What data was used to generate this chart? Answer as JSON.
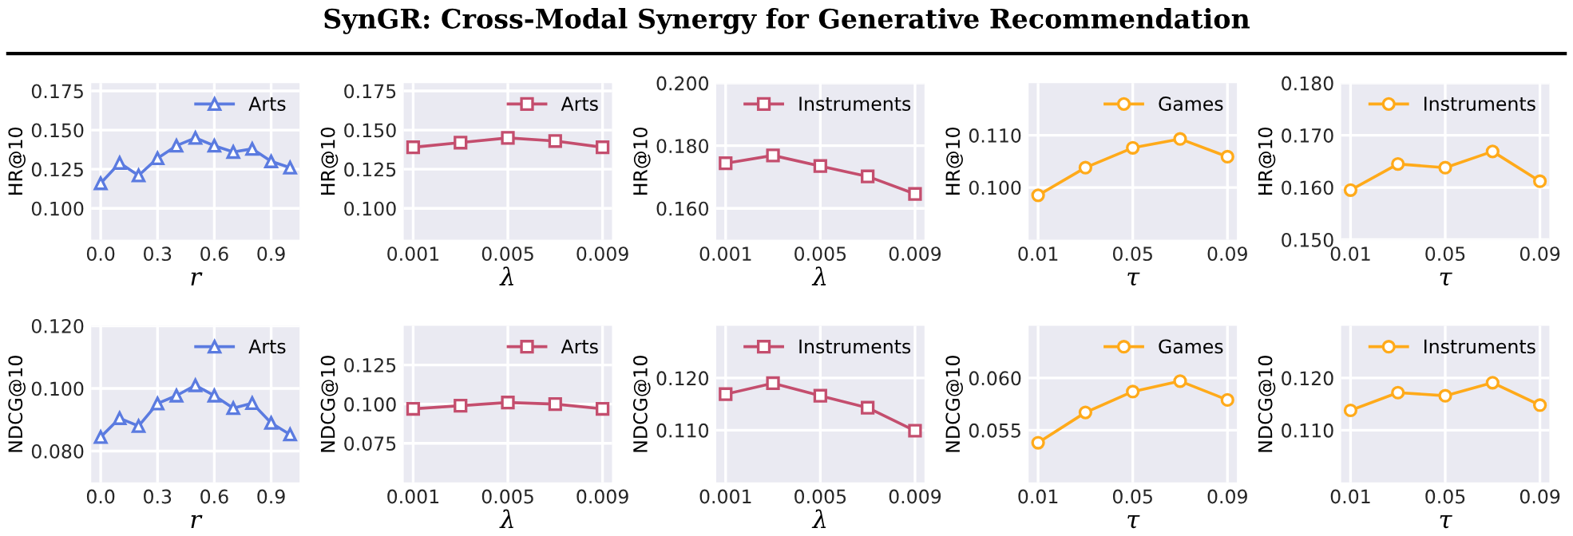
{
  "chart_data": [
    {
      "type": "line",
      "xlabel": "r",
      "ylabel": "HR@10",
      "x": [
        0.0,
        0.1,
        0.2,
        0.3,
        0.4,
        0.5,
        0.6,
        0.7,
        0.8,
        0.9,
        1.0
      ],
      "series": [
        {
          "name": "Arts",
          "color": "#5b7be0",
          "values": [
            0.116,
            0.129,
            0.121,
            0.132,
            0.14,
            0.145,
            0.14,
            0.136,
            0.138,
            0.13,
            0.126
          ]
        }
      ],
      "marker": "triangle",
      "xlim": [
        -0.05,
        1.05
      ],
      "xticks": [
        {
          "value": 0.0,
          "label": "0.0"
        },
        {
          "value": 0.3,
          "label": "0.3"
        },
        {
          "value": 0.6,
          "label": "0.6"
        },
        {
          "value": 0.9,
          "label": "0.9"
        }
      ],
      "ylim": [
        0.08,
        0.18
      ],
      "yticks": [
        {
          "value": 0.1,
          "label": "0.100"
        },
        {
          "value": 0.125,
          "label": "0.125"
        },
        {
          "value": 0.15,
          "label": "0.150"
        },
        {
          "value": 0.175,
          "label": "0.175"
        }
      ],
      "grid": true,
      "legend": "top right"
    },
    {
      "type": "line",
      "xlabel": "λ",
      "ylabel": "HR@10",
      "x": [
        0.001,
        0.003,
        0.005,
        0.007,
        0.009
      ],
      "series": [
        {
          "name": "Arts",
          "color": "#c44e6e",
          "values": [
            0.139,
            0.142,
            0.145,
            0.143,
            0.139
          ]
        }
      ],
      "marker": "square",
      "xlim": [
        0.0006,
        0.0094
      ],
      "xticks": [
        0.001,
        0.005,
        0.009
      ],
      "ylim": [
        0.08,
        0.18
      ],
      "yticks": [
        {
          "value": 0.1,
          "label": "0.100"
        },
        {
          "value": 0.125,
          "label": "0.125"
        },
        {
          "value": 0.15,
          "label": "0.150"
        },
        {
          "value": 0.175,
          "label": "0.175"
        }
      ],
      "grid": true,
      "legend": "top right"
    },
    {
      "type": "line",
      "title": "SynGR: Cross-Modal Synergy for Generative Recommendation",
      "xlabel": "λ",
      "ylabel": "HR@10",
      "x": [
        0.001,
        0.003,
        0.005,
        0.007,
        0.009
      ],
      "series": [
        {
          "name": "Instruments",
          "color": "#c44e6e",
          "values": [
            0.1744,
            0.1769,
            0.1735,
            0.1702,
            0.1646
          ]
        }
      ],
      "marker": "square",
      "xlim": [
        0.0006,
        0.0094
      ],
      "xticks": [
        0.001,
        0.005,
        0.009
      ],
      "ylim": [
        0.15,
        0.2
      ],
      "yticks": [
        {
          "value": 0.16,
          "label": "0.160"
        },
        {
          "value": 0.18,
          "label": "0.180"
        },
        {
          "value": 0.2,
          "label": "0.200"
        }
      ],
      "grid": true,
      "legend": "top right"
    },
    {
      "type": "line",
      "xlabel": "τ",
      "ylabel": "HR@10",
      "x": [
        0.01,
        0.03,
        0.05,
        0.07,
        0.09
      ],
      "series": [
        {
          "name": "Games",
          "color": "#ffaa1a",
          "values": [
            0.0985,
            0.1038,
            0.1076,
            0.1093,
            0.1059
          ]
        }
      ],
      "marker": "circle",
      "xlim": [
        0.006,
        0.094
      ],
      "xticks": [
        0.01,
        0.05,
        0.09
      ],
      "ylim": [
        0.09,
        0.12
      ],
      "yticks": [
        {
          "value": 0.1,
          "label": "0.100"
        },
        {
          "value": 0.11,
          "label": "0.110"
        }
      ],
      "grid": true,
      "legend": "top right"
    },
    {
      "type": "line",
      "xlabel": "τ",
      "ylabel": "HR@10",
      "x": [
        0.01,
        0.03,
        0.05,
        0.07,
        0.09
      ],
      "series": [
        {
          "name": "Instruments",
          "color": "#ffaa1a",
          "values": [
            0.1595,
            0.1645,
            0.1638,
            0.1669,
            0.1612
          ]
        }
      ],
      "marker": "circle",
      "xlim": [
        0.006,
        0.094
      ],
      "xticks": [
        0.01,
        0.05,
        0.09
      ],
      "ylim": [
        0.15,
        0.18
      ],
      "yticks": [
        {
          "value": 0.15,
          "label": "0.150"
        },
        {
          "value": 0.16,
          "label": "0.160"
        },
        {
          "value": 0.17,
          "label": "0.170"
        },
        {
          "value": 0.18,
          "label": "0.180"
        }
      ],
      "grid": true,
      "legend": "top right"
    },
    {
      "type": "line",
      "xlabel": "r",
      "ylabel": "NDCG@10",
      "x": [
        0.0,
        0.1,
        0.2,
        0.3,
        0.4,
        0.5,
        0.6,
        0.7,
        0.8,
        0.9,
        1.0
      ],
      "series": [
        {
          "name": "Arts",
          "color": "#5b7be0",
          "values": [
            0.0845,
            0.0905,
            0.088,
            0.0952,
            0.0977,
            0.101,
            0.0977,
            0.0937,
            0.0953,
            0.089,
            0.0853
          ]
        }
      ],
      "marker": "triangle",
      "xlim": [
        -0.05,
        1.05
      ],
      "xticks": [
        {
          "value": 0.0,
          "label": "0.0"
        },
        {
          "value": 0.3,
          "label": "0.3"
        },
        {
          "value": 0.6,
          "label": "0.6"
        },
        {
          "value": 0.9,
          "label": "0.9"
        }
      ],
      "ylim": [
        0.07,
        0.12
      ],
      "yticks": [
        {
          "value": 0.08,
          "label": "0.080"
        },
        {
          "value": 0.1,
          "label": "0.100"
        },
        {
          "value": 0.12,
          "label": "0.120"
        }
      ],
      "grid": true,
      "legend": "top right"
    },
    {
      "type": "line",
      "xlabel": "λ",
      "ylabel": "NDCG@10",
      "x": [
        0.001,
        0.003,
        0.005,
        0.007,
        0.009
      ],
      "series": [
        {
          "name": "Arts",
          "color": "#c44e6e",
          "values": [
            0.097,
            0.099,
            0.101,
            0.1,
            0.097
          ]
        }
      ],
      "marker": "square",
      "xlim": [
        0.0006,
        0.0094
      ],
      "xticks": [
        0.001,
        0.005,
        0.009
      ],
      "ylim": [
        0.05,
        0.15
      ],
      "yticks": [
        {
          "value": 0.075,
          "label": "0.075"
        },
        {
          "value": 0.1,
          "label": "0.100"
        },
        {
          "value": 0.125,
          "label": "0.125"
        }
      ],
      "grid": true,
      "legend": "top right"
    },
    {
      "type": "line",
      "xlabel": "λ",
      "ylabel": "NDCG@10",
      "x": [
        0.001,
        0.003,
        0.005,
        0.007,
        0.009
      ],
      "series": [
        {
          "name": "Instruments",
          "color": "#c44e6e",
          "values": [
            0.1169,
            0.119,
            0.1166,
            0.1143,
            0.1099
          ]
        }
      ],
      "marker": "square",
      "xlim": [
        0.0006,
        0.0094
      ],
      "xticks": [
        0.001,
        0.005,
        0.009
      ],
      "ylim": [
        0.1,
        0.13
      ],
      "yticks": [
        {
          "value": 0.11,
          "label": "0.110"
        },
        {
          "value": 0.12,
          "label": "0.120"
        }
      ],
      "grid": true,
      "legend": "top right"
    },
    {
      "type": "line",
      "xlabel": "τ",
      "ylabel": "NDCG@10",
      "x": [
        0.01,
        0.03,
        0.05,
        0.07,
        0.09
      ],
      "series": [
        {
          "name": "Games",
          "color": "#ffaa1a",
          "values": [
            0.0538,
            0.0567,
            0.0587,
            0.0597,
            0.0579
          ]
        }
      ],
      "marker": "circle",
      "xlim": [
        0.006,
        0.094
      ],
      "xticks": [
        0.01,
        0.05,
        0.09
      ],
      "ylim": [
        0.05,
        0.065
      ],
      "yticks": [
        {
          "value": 0.055,
          "label": "0.055"
        },
        {
          "value": 0.06,
          "label": "0.060"
        }
      ],
      "grid": true,
      "legend": "top right"
    },
    {
      "type": "line",
      "xlabel": "τ",
      "ylabel": "NDCG@10",
      "x": [
        0.01,
        0.03,
        0.05,
        0.07,
        0.09
      ],
      "series": [
        {
          "name": "Instruments",
          "color": "#ffaa1a",
          "values": [
            0.1138,
            0.1172,
            0.1166,
            0.1191,
            0.1148
          ]
        }
      ],
      "marker": "circle",
      "xlim": [
        0.006,
        0.094
      ],
      "xticks": [
        0.01,
        0.05,
        0.09
      ],
      "ylim": [
        0.1,
        0.13
      ],
      "yticks": [
        {
          "value": 0.11,
          "label": "0.110"
        },
        {
          "value": 0.12,
          "label": "0.120"
        }
      ],
      "grid": true,
      "legend": "top right"
    }
  ]
}
